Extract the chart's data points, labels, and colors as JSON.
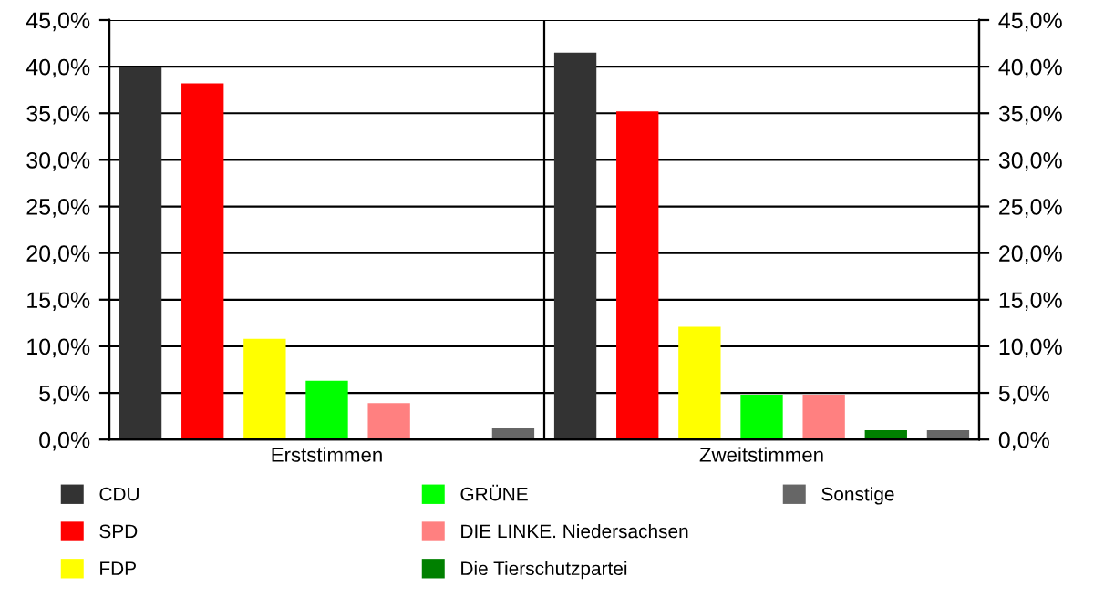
{
  "chart_data": {
    "type": "bar",
    "categories": [
      "Erststimmen",
      "Zweitstimmen"
    ],
    "series": [
      {
        "name": "CDU",
        "color": "#333333",
        "values": [
          40.0,
          41.5
        ]
      },
      {
        "name": "SPD",
        "color": "#ff0000",
        "values": [
          38.2,
          35.2
        ]
      },
      {
        "name": "FDP",
        "color": "#ffff00",
        "values": [
          10.8,
          12.1
        ]
      },
      {
        "name": "GRÜNE",
        "color": "#00ff00",
        "values": [
          6.3,
          4.8
        ]
      },
      {
        "name": "DIE LINKE. Niedersachsen",
        "color": "#ff8080",
        "values": [
          3.9,
          4.8
        ]
      },
      {
        "name": "Die Tierschutzpartei",
        "color": "#008000",
        "values": [
          null,
          1.0
        ]
      },
      {
        "name": "Sonstige",
        "color": "#666666",
        "values": [
          1.2,
          1.0
        ]
      }
    ],
    "ylim": [
      0,
      45
    ],
    "yticks": [
      {
        "value": 0,
        "label": "0,0%"
      },
      {
        "value": 5,
        "label": "5,0%"
      },
      {
        "value": 10,
        "label": "10,0%"
      },
      {
        "value": 15,
        "label": "15,0%"
      },
      {
        "value": 20,
        "label": "20,0%"
      },
      {
        "value": 25,
        "label": "25,0%"
      },
      {
        "value": 30,
        "label": "30,0%"
      },
      {
        "value": 35,
        "label": "35,0%"
      },
      {
        "value": 40,
        "label": "40,0%"
      },
      {
        "value": 45,
        "label": "45,0%"
      }
    ],
    "y2lim": [
      0,
      45
    ],
    "y2ticks": [
      {
        "value": 0,
        "label": "0,0%"
      },
      {
        "value": 5,
        "label": "5,0%"
      },
      {
        "value": 10,
        "label": "10,0%"
      },
      {
        "value": 15,
        "label": "15,0%"
      },
      {
        "value": 20,
        "label": "20,0%"
      },
      {
        "value": 25,
        "label": "25,0%"
      },
      {
        "value": 30,
        "label": "30,0%"
      },
      {
        "value": 35,
        "label": "35,0%"
      },
      {
        "value": 40,
        "label": "40,0%"
      },
      {
        "value": 45,
        "label": "45,0%"
      }
    ],
    "grid": "y",
    "legend": "bottom"
  }
}
